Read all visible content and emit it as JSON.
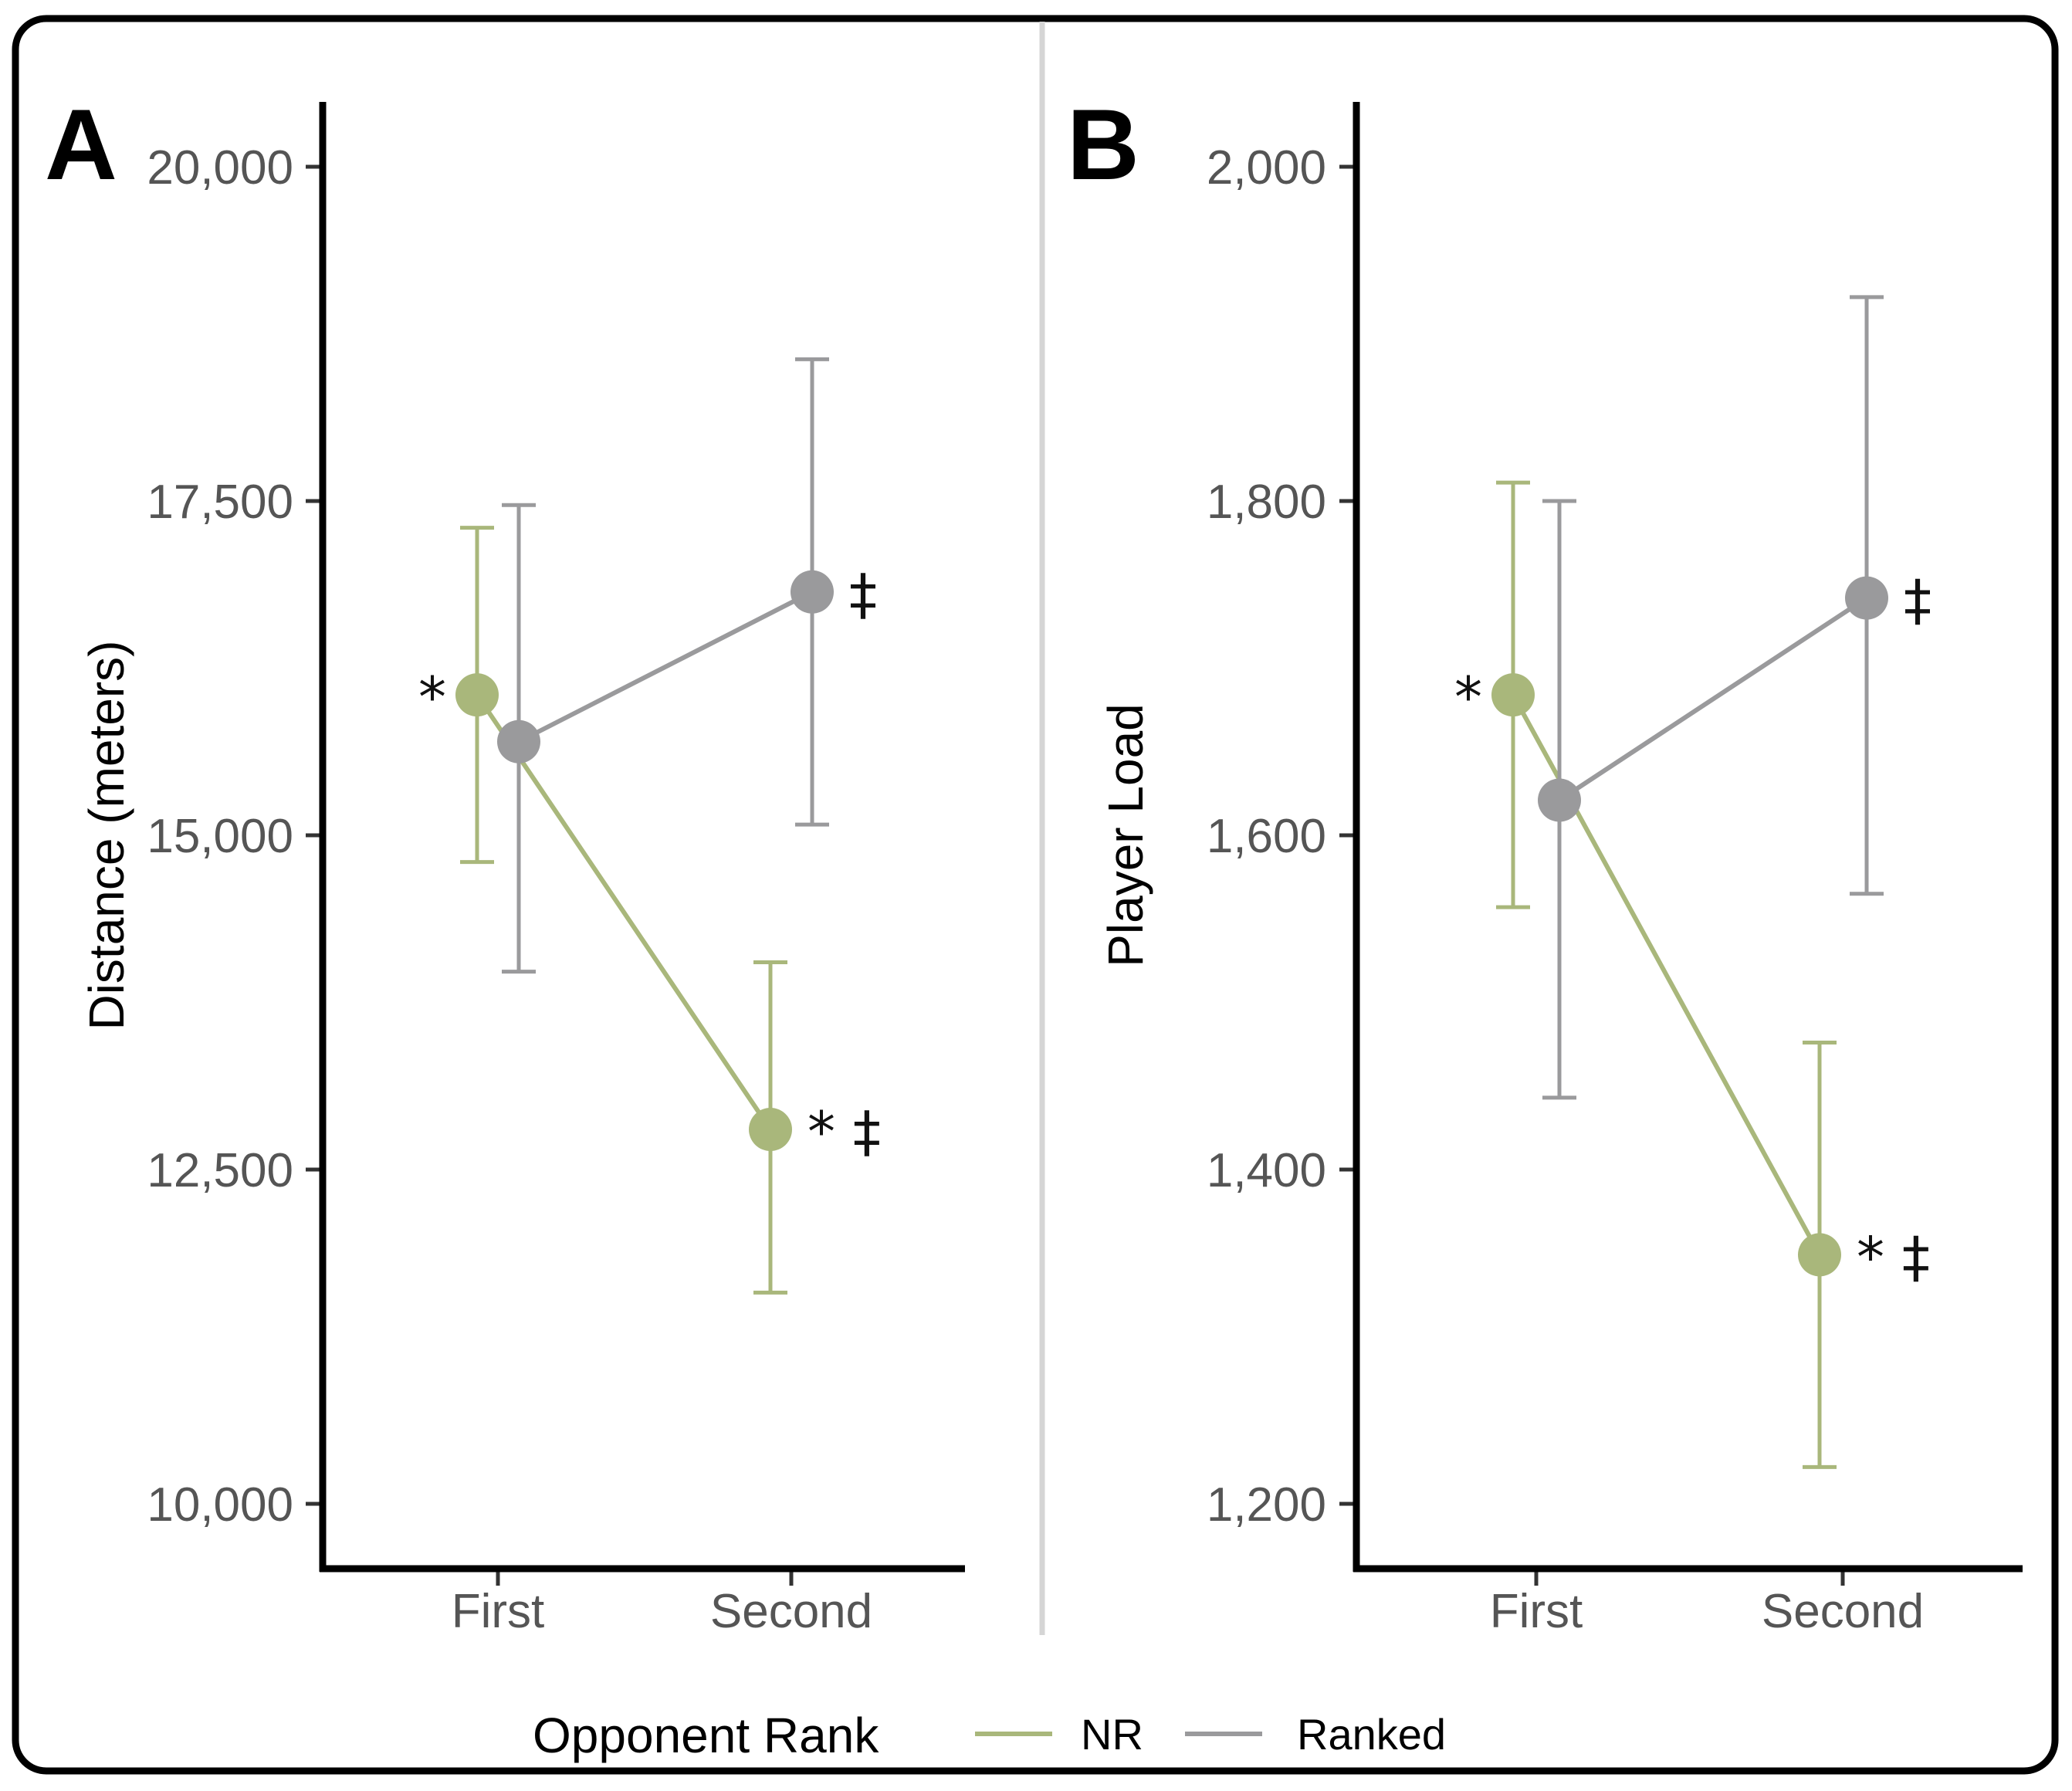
{
  "chart_data": [
    {
      "type": "line",
      "panel_label": "A",
      "title": "",
      "xlabel": "",
      "ylabel": "Distance (meters)",
      "categories": [
        "First",
        "Second"
      ],
      "ylim": [
        9500,
        20500
      ],
      "yticks": [
        10000,
        12500,
        15000,
        17500,
        20000
      ],
      "ytick_labels": [
        "10,000",
        "12,500",
        "15,000",
        "17,500",
        "20,000"
      ],
      "series": [
        {
          "name": "NR",
          "color": "#a9b77b",
          "values": [
            16050,
            12800
          ],
          "lower": [
            14800,
            11580
          ],
          "upper": [
            17300,
            14050
          ],
          "annotations": [
            "*",
            "* ‡"
          ]
        },
        {
          "name": "Ranked",
          "color": "#9a9a9c",
          "values": [
            15700,
            16820
          ],
          "lower": [
            13980,
            15080
          ],
          "upper": [
            17470,
            18560
          ],
          "annotations": [
            "",
            "‡"
          ]
        }
      ]
    },
    {
      "type": "line",
      "panel_label": "B",
      "title": "",
      "xlabel": "",
      "ylabel": "Player Load",
      "categories": [
        "First",
        "Second"
      ],
      "ylim": [
        1160,
        2040
      ],
      "yticks": [
        1200,
        1400,
        1600,
        1800,
        2000
      ],
      "ytick_labels": [
        "1,200",
        "1,400",
        "1,600",
        "1,800",
        "2,000"
      ],
      "series": [
        {
          "name": "NR",
          "color": "#a9b77b",
          "values": [
            1684,
            1349
          ],
          "lower": [
            1557,
            1222
          ],
          "upper": [
            1811,
            1476
          ],
          "annotations": [
            "*",
            "* ‡"
          ]
        },
        {
          "name": "Ranked",
          "color": "#9a9a9c",
          "values": [
            1621,
            1742
          ],
          "lower": [
            1443,
            1565
          ],
          "upper": [
            1800,
            1922
          ],
          "annotations": [
            "",
            "‡"
          ]
        }
      ]
    }
  ],
  "legend": {
    "title": "Opponent Rank",
    "items": [
      {
        "label": "NR",
        "color": "#a9b77b"
      },
      {
        "label": "Ranked",
        "color": "#9a9a9c"
      }
    ]
  }
}
